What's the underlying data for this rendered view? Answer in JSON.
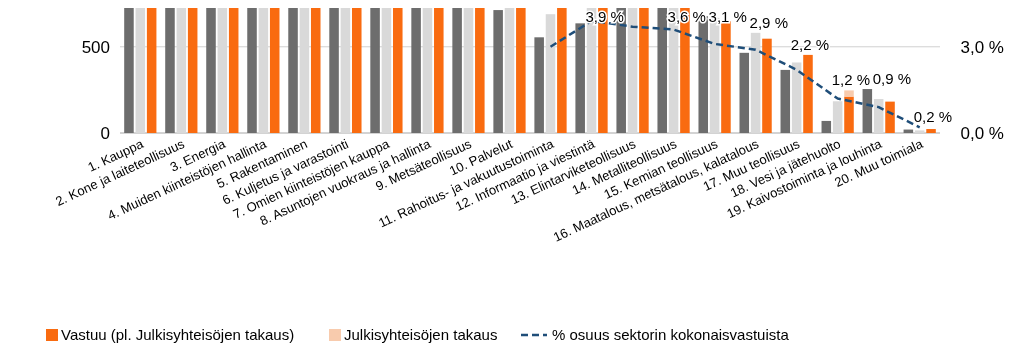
{
  "chart_data": {
    "type": "bar",
    "categories": [
      "1. Kauppa",
      "2. Kone ja laiteteollisuus",
      "3. Energia",
      "4. Muiden kiinteistöjen hallinta",
      "5. Rakentaminen",
      "6. Kuljetus ja varastointi",
      "7. Omien kiinteistöjen kauppa",
      "8. Asuntojen vuokraus ja hallinta",
      "9. Metsäteollisuus",
      "10. Palvelut",
      "11. Rahoitus- ja vakuutustoiminta",
      "12. Informaatio ja viestintä",
      "13. Elintarviketeollisuus",
      "14. Metalliteollisuus",
      "15. Kemian teollisuus",
      "16. Maatalous, metsätalous, kalatalous",
      "17. Muu teollisuus",
      "18. Vesi ja jätehuolto",
      "19. Kaivostoiminta ja louhinta",
      "20. Muu toimiala"
    ],
    "series": [
      {
        "color": "#6d6d6d",
        "values": [
          725,
          725,
          725,
          725,
          725,
          725,
          725,
          725,
          725,
          713,
          555,
          636,
          725,
          725,
          677,
          465,
          366,
          70,
          255,
          20
        ]
      },
      {
        "color": "#d9d9d9",
        "values": [
          725,
          725,
          725,
          725,
          725,
          725,
          725,
          725,
          725,
          725,
          689,
          725,
          725,
          725,
          668,
          581,
          409,
          184,
          197,
          15
        ]
      },
      {
        "name": "Vastuu (pl. Julkisyhteisöjen takaus)",
        "color": "#f96b10",
        "values": [
          725,
          725,
          725,
          725,
          725,
          725,
          725,
          725,
          725,
          725,
          725,
          725,
          725,
          725,
          648,
          547,
          453,
          211,
          182,
          23
        ]
      },
      {
        "name": "Julkisyhteisöjen takaus",
        "color": "#f8cbad",
        "base": [
          null,
          null,
          null,
          null,
          null,
          null,
          null,
          null,
          null,
          null,
          null,
          null,
          null,
          null,
          null,
          null,
          null,
          211,
          null,
          null
        ],
        "values": [
          null,
          null,
          null,
          null,
          null,
          null,
          null,
          null,
          null,
          null,
          null,
          null,
          null,
          null,
          null,
          null,
          null,
          36,
          null,
          null
        ]
      },
      {
        "name": "% osuus sektorin kokonaisvastuista",
        "type": "line",
        "axis": "y2",
        "color": "#1f4e79",
        "line_style": "dashed",
        "marker": "none",
        "values": [
          null,
          null,
          null,
          null,
          null,
          null,
          null,
          null,
          null,
          null,
          3.0,
          3.9,
          3.7,
          3.6,
          3.1,
          2.9,
          2.2,
          1.2,
          0.9,
          0.2
        ],
        "value_labels": [
          null,
          null,
          null,
          null,
          null,
          null,
          null,
          null,
          null,
          null,
          null,
          "3,9 %",
          null,
          "3,6 %",
          "3,1 %",
          "2,9 %",
          "2,2 %",
          "1,2 %",
          "0,9 %",
          "0,2 %"
        ]
      }
    ],
    "ylim": [
      0,
      725
    ],
    "yticks": [
      0,
      500
    ],
    "y2lim": [
      0,
      4.35
    ],
    "y2ticks": [
      {
        "value": 0,
        "label": "0,0 %"
      },
      {
        "value": 3,
        "label": "3,0 %"
      }
    ],
    "grid": "y",
    "legend": "bottom"
  }
}
